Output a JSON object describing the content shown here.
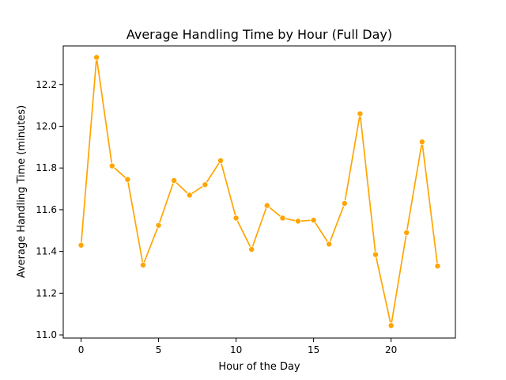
{
  "chart_data": {
    "type": "line",
    "title": "Average Handling Time by Hour (Full Day)",
    "xlabel": "Hour of the Day",
    "ylabel": "Average Handling Time (minutes)",
    "xlim": [
      -1.15,
      24.15
    ],
    "ylim": [
      10.985,
      12.385
    ],
    "x_ticks": [
      0,
      5,
      10,
      15,
      20
    ],
    "y_ticks": [
      11.0,
      11.2,
      11.4,
      11.6,
      11.8,
      12.0,
      12.2
    ],
    "y_tick_labels": [
      "11.0",
      "11.2",
      "11.4",
      "11.6",
      "11.8",
      "12.0",
      "12.2"
    ],
    "grid": false,
    "series": [
      {
        "color": "#ffa500",
        "marker": "circle",
        "x": [
          0,
          1,
          2,
          3,
          4,
          5,
          6,
          7,
          8,
          9,
          10,
          11,
          12,
          13,
          14,
          15,
          16,
          17,
          18,
          19,
          20,
          21,
          22,
          23
        ],
        "y": [
          11.43,
          12.33,
          11.81,
          11.745,
          11.335,
          11.525,
          11.74,
          11.67,
          11.72,
          11.835,
          11.56,
          11.41,
          11.62,
          11.56,
          11.545,
          11.55,
          11.435,
          11.63,
          12.06,
          11.385,
          11.045,
          11.49,
          11.925,
          11.33
        ]
      }
    ]
  }
}
